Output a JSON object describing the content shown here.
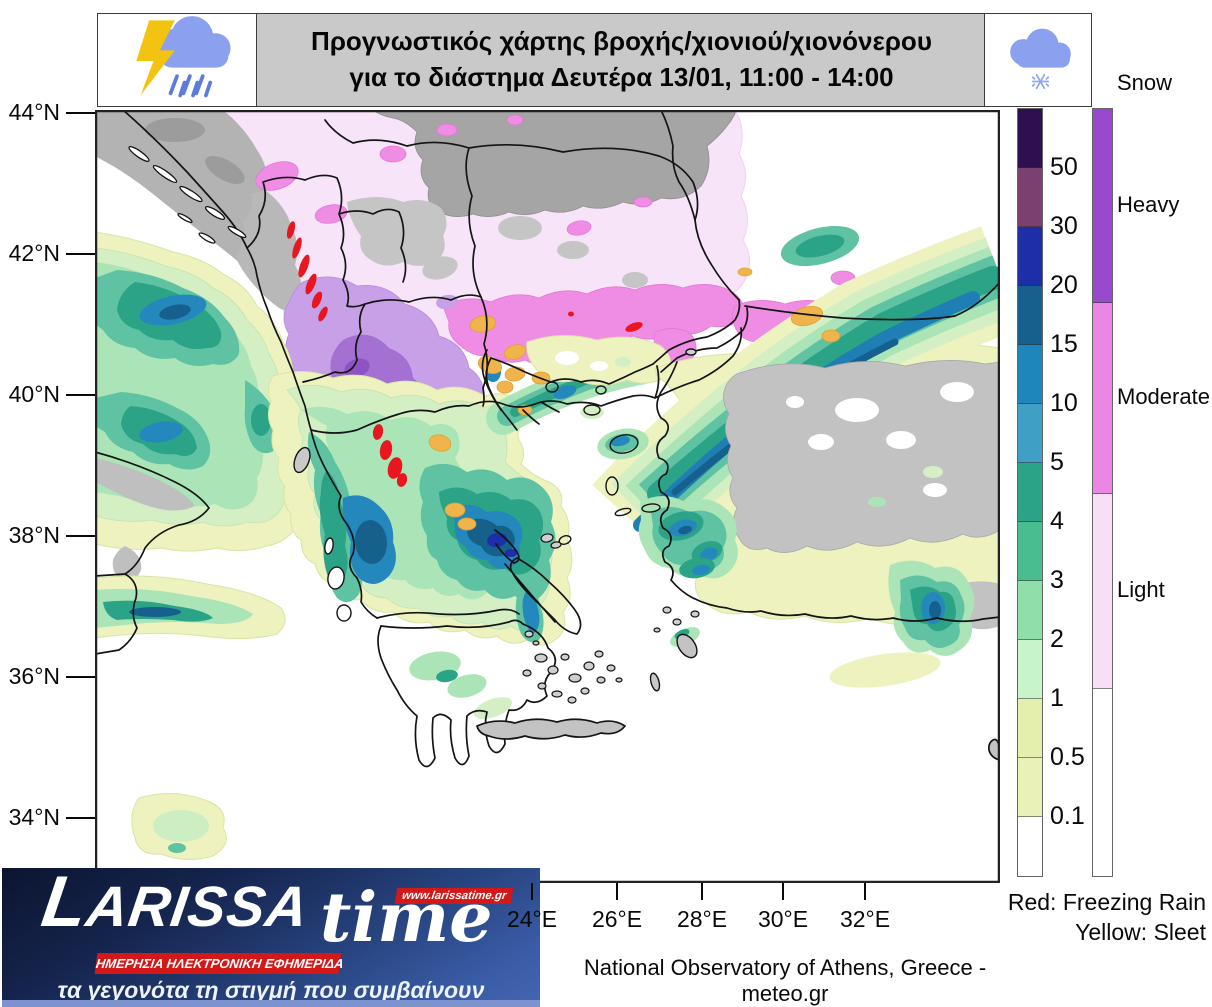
{
  "header": {
    "title_line1": "Προγνωστικός χάρτης βροχής/χιονιού/χιονόνερου",
    "title_line2": "για το διάστημα Δευτέρα 13/01, 11:00 - 14:00",
    "left_icon": "storm-cloud-lightning-rain-icon",
    "right_icon": "snow-cloud-snowflake-icon"
  },
  "map": {
    "lat_ticks": [
      "44°N",
      "42°N",
      "40°N",
      "38°N",
      "36°N",
      "34°N"
    ],
    "lon_ticks": [
      "24°E",
      "26°E",
      "28°E",
      "30°E",
      "32°E"
    ]
  },
  "legend": {
    "rain_scale": {
      "labels": [
        "50",
        "30",
        "20",
        "15",
        "10",
        "5",
        "4",
        "3",
        "2",
        "1",
        "0.5",
        "0.1"
      ],
      "colors": [
        "#2e0f4f",
        "#7c4070",
        "#1e2ea8",
        "#15608c",
        "#1f86bb",
        "#3f9fc4",
        "#2ba387",
        "#4abd8e",
        "#90dfa9",
        "#c8f4c9",
        "#e5efad",
        "#e9f1b8",
        "#ffffff"
      ]
    },
    "snow_scale": {
      "title": "Snow",
      "categories": [
        {
          "label": "Heavy",
          "color": "#9a49cf"
        },
        {
          "label": "Moderate",
          "color": "#ec86e4"
        },
        {
          "label": "Light",
          "color": "#f8dff7"
        },
        {
          "label": "",
          "color": "#ffffff"
        }
      ]
    }
  },
  "notes": {
    "freezing_rain": "Red: Freezing Rain",
    "sleet": "Yellow: Sleet",
    "freezing_rain_color": "#e8161f",
    "sleet_color": "#efb44c"
  },
  "attribution": "National Observatory of Athens, Greece - meteo.gr",
  "logo": {
    "brand": "LARISSA",
    "brand_suffix": "time",
    "website": "www.larissatime.gr",
    "banner": "ΗΜΕΡΗΣΙΑ ΗΛΕΚΤΡΟΝΙΚΗ ΕΦΗΜΕΡΙΔΑ",
    "tagline": "τα γεγονότα τη στιγμή που συμβαίνουν"
  }
}
